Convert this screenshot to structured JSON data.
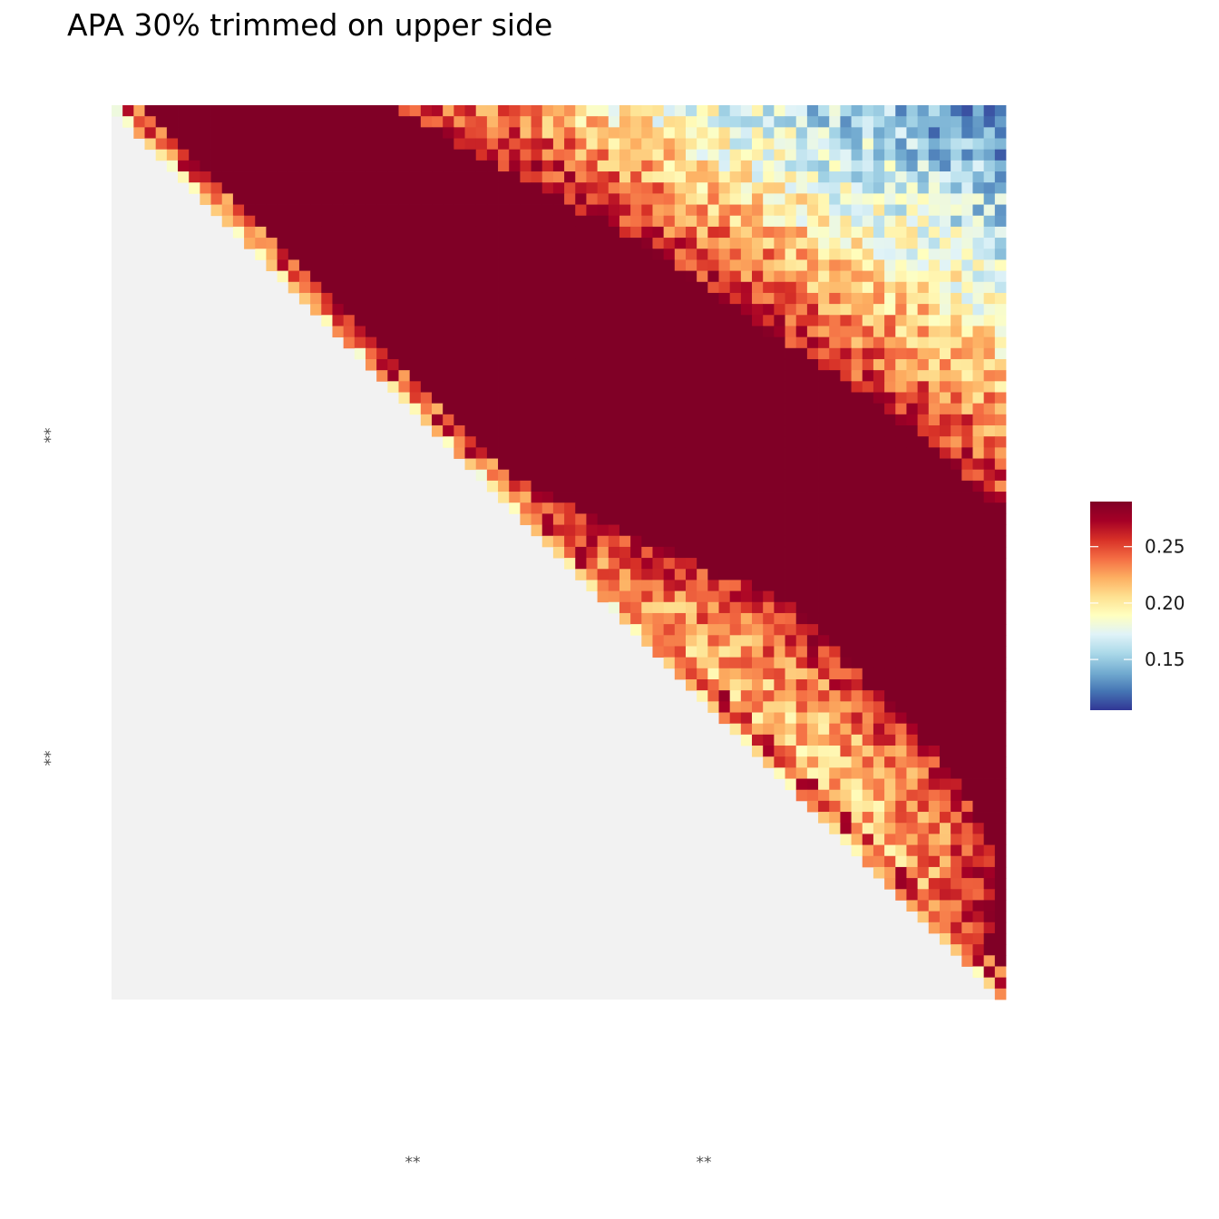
{
  "chart_data": {
    "type": "heatmap",
    "title": "APA 30% trimmed on upper side",
    "xlabel": "",
    "ylabel": "",
    "x_tick_labels": [
      "**",
      "**"
    ],
    "y_tick_labels": [
      "**",
      "**"
    ],
    "grid": false,
    "shape": "upper-triangular matrix, 81 x 81 bins, diagonal from top-left to bottom-right",
    "na_fill_color": "#f2f2f2",
    "colorscale": {
      "name": "RdYlBu (reversed)",
      "stops": [
        "#313695",
        "#4575b4",
        "#74add1",
        "#abd9e9",
        "#e0f3f8",
        "#ffffbf",
        "#fee090",
        "#fdae61",
        "#f46d43",
        "#d73027",
        "#a50026",
        "#800026"
      ],
      "min": 0.105,
      "max": 0.29,
      "legend_ticks": [
        0.15,
        0.2,
        0.25
      ],
      "legend_tick_labels": [
        "0.15",
        "0.20",
        "0.25"
      ],
      "legend_position": "right"
    },
    "description_of_values": "Values saturate at ~0.29 (dark red) in a broad band parallel to the diagonal (offset 5-40 bins), with lighter yellow/orange near the diagonal edge and cooler blue/green values (0.11-0.19) toward the top-right corner."
  }
}
